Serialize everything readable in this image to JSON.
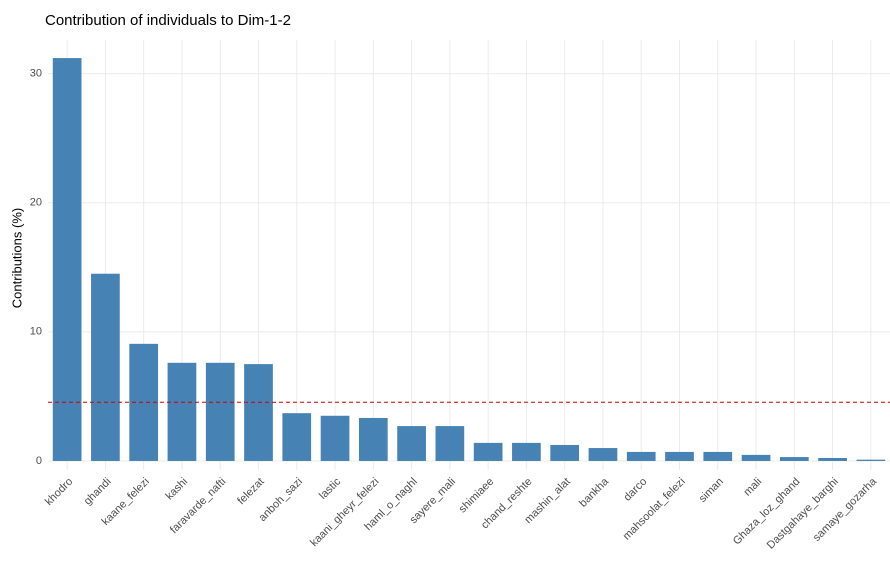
{
  "chart_data": {
    "type": "bar",
    "title": "Contribution of individuals to Dim-1-2",
    "y_label": "Contributions (%)",
    "categories": [
      "khodro",
      "ghandi",
      "kaane_felezi",
      "kashi",
      "faravarde_nafti",
      "felezat",
      "anboh_sazi",
      "lastic",
      "kaani_gheyr_felezi",
      "haml_o_naghl",
      "sayere_mali",
      "shimiaee",
      "chand_reshte",
      "mashin_alat",
      "bankha",
      "darco",
      "mahsoolat_felezi",
      "siman",
      "mali",
      "Ghaza_loz_ghand",
      "Dastgahaye_barghi",
      "samaye_gozarha"
    ],
    "values": [
      31.2,
      14.5,
      9.07,
      7.6,
      7.6,
      7.5,
      3.7,
      3.5,
      3.33,
      2.7,
      2.7,
      1.4,
      1.4,
      1.24,
      1.0,
      0.7,
      0.7,
      0.7,
      0.47,
      0.3,
      0.23,
      0.1
    ],
    "color": "#4682b4",
    "reference_line": 4.55,
    "reference_color": "#cc0000",
    "ylim": [
      -0.7,
      32.6
    ],
    "yticks": [
      0,
      10,
      20,
      30
    ],
    "grid": true
  }
}
